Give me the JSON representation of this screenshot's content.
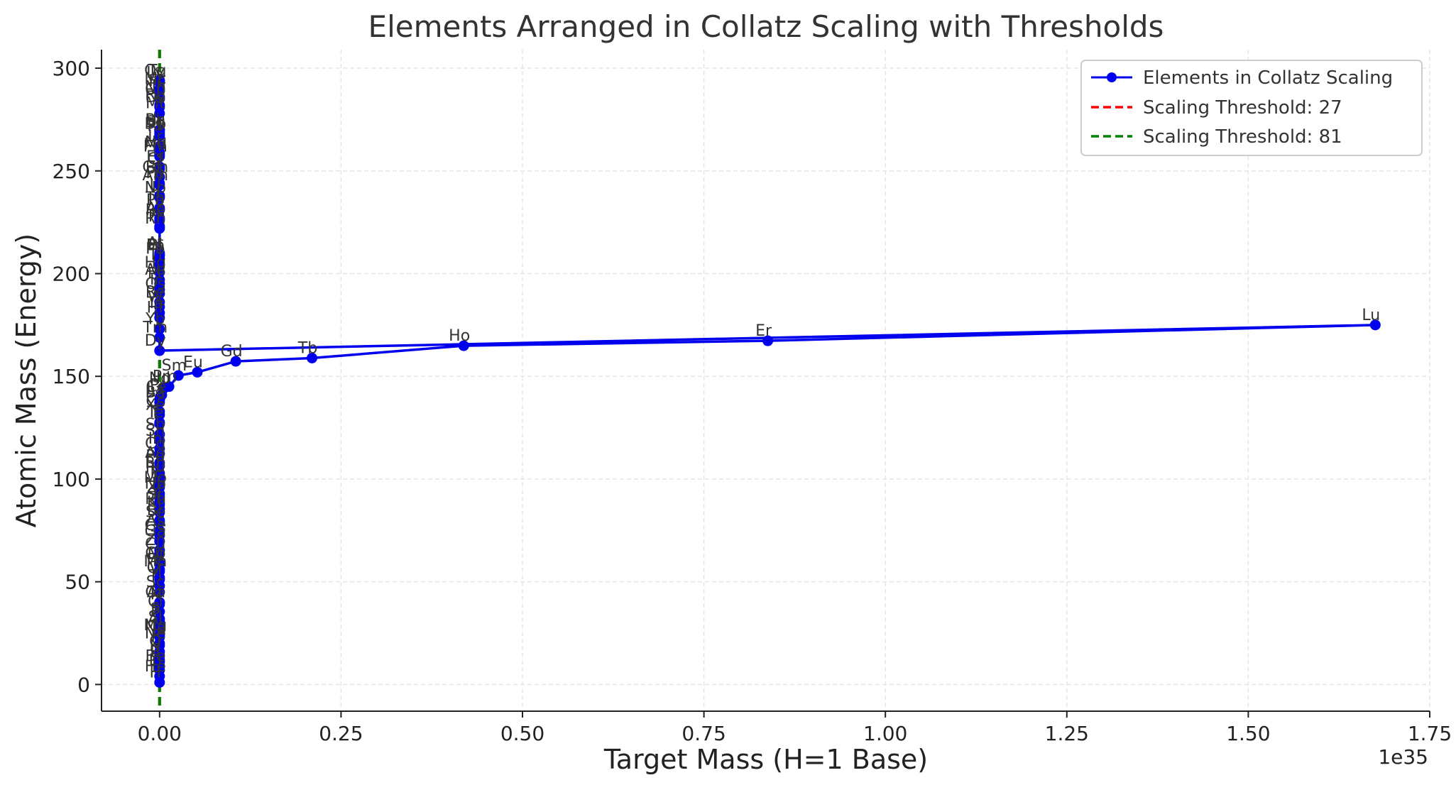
{
  "chart_data": {
    "type": "line",
    "title": "Elements Arranged in Collatz Scaling with Thresholds",
    "xlabel": "Target Mass (H=1 Base)",
    "ylabel": "Atomic Mass (Energy)",
    "x_offset_label": "1e35",
    "xlim": [
      -0.08,
      1.75
    ],
    "ylim": [
      -13,
      309
    ],
    "x_ticks": [
      0.0,
      0.25,
      0.5,
      0.75,
      1.0,
      1.25,
      1.5,
      1.75
    ],
    "x_tick_labels": [
      "0.00",
      "0.25",
      "0.50",
      "0.75",
      "1.00",
      "1.25",
      "1.50",
      "1.75"
    ],
    "y_ticks": [
      0,
      50,
      100,
      150,
      200,
      250,
      300
    ],
    "y_tick_labels": [
      "0",
      "50",
      "100",
      "150",
      "200",
      "250",
      "300"
    ],
    "grid": true,
    "legend_position": "top-right",
    "series": [
      {
        "name": "Elements in Collatz Scaling",
        "color": "#0000ee",
        "points": [
          {
            "label": "H",
            "x": 0,
            "y": 1
          },
          {
            "label": "He",
            "x": 0,
            "y": 4
          },
          {
            "label": "Li",
            "x": 0,
            "y": 7
          },
          {
            "label": "Be",
            "x": 0,
            "y": 9
          },
          {
            "label": "B",
            "x": 0,
            "y": 11
          },
          {
            "label": "C",
            "x": 0,
            "y": 12
          },
          {
            "label": "N",
            "x": 0,
            "y": 14
          },
          {
            "label": "O",
            "x": 0,
            "y": 16
          },
          {
            "label": "F",
            "x": 0,
            "y": 19
          },
          {
            "label": "Ne",
            "x": 0,
            "y": 20
          },
          {
            "label": "Na",
            "x": 0,
            "y": 23
          },
          {
            "label": "Mg",
            "x": 0,
            "y": 24
          },
          {
            "label": "Al",
            "x": 0,
            "y": 27
          },
          {
            "label": "Si",
            "x": 0,
            "y": 28
          },
          {
            "label": "P",
            "x": 0,
            "y": 31
          },
          {
            "label": "S",
            "x": 0,
            "y": 32
          },
          {
            "label": "Cl",
            "x": 0,
            "y": 35.5
          },
          {
            "label": "Ar",
            "x": 0,
            "y": 40
          },
          {
            "label": "K",
            "x": 0,
            "y": 39
          },
          {
            "label": "Ca",
            "x": 0,
            "y": 40
          },
          {
            "label": "Sc",
            "x": 0,
            "y": 45
          },
          {
            "label": "Ti",
            "x": 0,
            "y": 48
          },
          {
            "label": "V",
            "x": 0,
            "y": 51
          },
          {
            "label": "Cr",
            "x": 0,
            "y": 52
          },
          {
            "label": "Mn",
            "x": 0,
            "y": 55
          },
          {
            "label": "Fe",
            "x": 0,
            "y": 56
          },
          {
            "label": "Co",
            "x": 0,
            "y": 59
          },
          {
            "label": "Ni",
            "x": 0,
            "y": 58.7
          },
          {
            "label": "Cu",
            "x": 0,
            "y": 63.5
          },
          {
            "label": "Zn",
            "x": 0,
            "y": 65.4
          },
          {
            "label": "Ga",
            "x": 0,
            "y": 69.7
          },
          {
            "label": "Ge",
            "x": 0,
            "y": 72.6
          },
          {
            "label": "As",
            "x": 0,
            "y": 74.9
          },
          {
            "label": "Se",
            "x": 0,
            "y": 79
          },
          {
            "label": "Br",
            "x": 0,
            "y": 79.9
          },
          {
            "label": "Kr",
            "x": 0,
            "y": 83.8
          },
          {
            "label": "Rb",
            "x": 0,
            "y": 85.5
          },
          {
            "label": "Sr",
            "x": 0,
            "y": 87.6
          },
          {
            "label": "Y",
            "x": 0,
            "y": 88.9
          },
          {
            "label": "Zr",
            "x": 0,
            "y": 91.2
          },
          {
            "label": "Nb",
            "x": 0,
            "y": 92.9
          },
          {
            "label": "Mo",
            "x": 0,
            "y": 95.9
          },
          {
            "label": "Tc",
            "x": 0,
            "y": 98
          },
          {
            "label": "Ru",
            "x": 0,
            "y": 101
          },
          {
            "label": "Rh",
            "x": 0,
            "y": 102.9
          },
          {
            "label": "Pd",
            "x": 0,
            "y": 106.4
          },
          {
            "label": "Ag",
            "x": 0,
            "y": 107.9
          },
          {
            "label": "Cd",
            "x": 0,
            "y": 112.4
          },
          {
            "label": "In",
            "x": 0,
            "y": 114.8
          },
          {
            "label": "Sn",
            "x": 0,
            "y": 118.7
          },
          {
            "label": "Sb",
            "x": 0,
            "y": 121.8
          },
          {
            "label": "Te",
            "x": 0,
            "y": 127.6
          },
          {
            "label": "I",
            "x": 0,
            "y": 126.9
          },
          {
            "label": "Xe",
            "x": 0,
            "y": 131.3
          },
          {
            "label": "Cs",
            "x": 0,
            "y": 132.9
          },
          {
            "label": "Ba",
            "x": 0,
            "y": 137.3
          },
          {
            "label": "La",
            "x": 0.0002,
            "y": 138.9
          },
          {
            "label": "Ce",
            "x": 0.001,
            "y": 140.1
          },
          {
            "label": "Pr",
            "x": 0.003,
            "y": 140.9
          },
          {
            "label": "Nd",
            "x": 0.006,
            "y": 144.2
          },
          {
            "label": "Pm",
            "x": 0.013,
            "y": 145
          },
          {
            "label": "Sm",
            "x": 0.026,
            "y": 150.4
          },
          {
            "label": "Eu",
            "x": 0.052,
            "y": 152
          },
          {
            "label": "Gd",
            "x": 0.105,
            "y": 157.3
          },
          {
            "label": "Tb",
            "x": 0.21,
            "y": 158.9
          },
          {
            "label": "Ho",
            "x": 0.419,
            "y": 164.9
          },
          {
            "label": "Er",
            "x": 0.838,
            "y": 167.3
          },
          {
            "label": "Lu",
            "x": 1.675,
            "y": 175
          },
          {
            "label": "Dy",
            "x": 0,
            "y": 162.5
          },
          {
            "label": "Tm",
            "x": 0,
            "y": 168.9
          },
          {
            "label": "Yb",
            "x": 0,
            "y": 173
          },
          {
            "label": "Hf",
            "x": 0,
            "y": 178.5
          },
          {
            "label": "Ta",
            "x": 0,
            "y": 180.9
          },
          {
            "label": "W",
            "x": 0,
            "y": 183.8
          },
          {
            "label": "Re",
            "x": 0,
            "y": 186.2
          },
          {
            "label": "Os",
            "x": 0,
            "y": 190.2
          },
          {
            "label": "Ir",
            "x": 0,
            "y": 192.2
          },
          {
            "label": "Pt",
            "x": 0,
            "y": 195.1
          },
          {
            "label": "Au",
            "x": 0,
            "y": 197
          },
          {
            "label": "Hg",
            "x": 0,
            "y": 200.6
          },
          {
            "label": "Tl",
            "x": 0,
            "y": 204.4
          },
          {
            "label": "Pb",
            "x": 0,
            "y": 207.2
          },
          {
            "label": "Bi",
            "x": 0,
            "y": 209
          },
          {
            "label": "Po",
            "x": 0,
            "y": 209
          },
          {
            "label": "At",
            "x": 0,
            "y": 210
          },
          {
            "label": "Rn",
            "x": 0,
            "y": 222
          },
          {
            "label": "Fr",
            "x": 0,
            "y": 223
          },
          {
            "label": "Ra",
            "x": 0,
            "y": 226
          },
          {
            "label": "Ac",
            "x": 0,
            "y": 227
          },
          {
            "label": "Th",
            "x": 0,
            "y": 232
          },
          {
            "label": "Pa",
            "x": 0,
            "y": 231
          },
          {
            "label": "U",
            "x": 0,
            "y": 238
          },
          {
            "label": "Np",
            "x": 0,
            "y": 237
          },
          {
            "label": "Pu",
            "x": 0,
            "y": 244
          },
          {
            "label": "Am",
            "x": 0,
            "y": 243
          },
          {
            "label": "Cm",
            "x": 0,
            "y": 247
          },
          {
            "label": "Bk",
            "x": 0,
            "y": 247
          },
          {
            "label": "Cf",
            "x": 0,
            "y": 251
          },
          {
            "label": "Es",
            "x": 0,
            "y": 252
          },
          {
            "label": "Fm",
            "x": 0,
            "y": 257
          },
          {
            "label": "Md",
            "x": 0,
            "y": 258
          },
          {
            "label": "No",
            "x": 0,
            "y": 259
          },
          {
            "label": "Lr",
            "x": 0,
            "y": 262
          },
          {
            "label": "Rf",
            "x": 0,
            "y": 267
          },
          {
            "label": "Db",
            "x": 0,
            "y": 268
          },
          {
            "label": "Sg",
            "x": 0,
            "y": 269
          },
          {
            "label": "Bh",
            "x": 0,
            "y": 270
          },
          {
            "label": "Hs",
            "x": 0,
            "y": 270
          },
          {
            "label": "Mt",
            "x": 0,
            "y": 278
          },
          {
            "label": "Ds",
            "x": 0,
            "y": 281
          },
          {
            "label": "Rg",
            "x": 0,
            "y": 282
          },
          {
            "label": "Cn",
            "x": 0,
            "y": 285
          },
          {
            "label": "Nh",
            "x": 0,
            "y": 286
          },
          {
            "label": "Fl",
            "x": 0,
            "y": 289
          },
          {
            "label": "Mc",
            "x": 0,
            "y": 290
          },
          {
            "label": "Lv",
            "x": 0,
            "y": 293
          },
          {
            "label": "Ts",
            "x": 0,
            "y": 294
          },
          {
            "label": "Og",
            "x": 0,
            "y": 294
          }
        ]
      }
    ],
    "thresholds": [
      {
        "name": "Scaling Threshold: 27",
        "x": 0,
        "color": "#ff0000"
      },
      {
        "name": "Scaling Threshold: 81",
        "x": 0,
        "color": "#008000"
      }
    ]
  }
}
